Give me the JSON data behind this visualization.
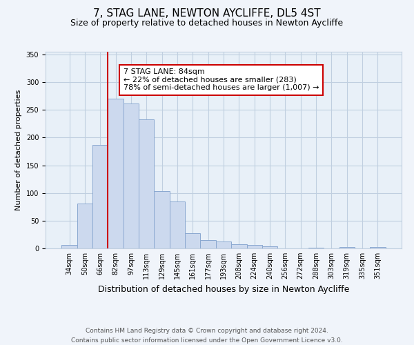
{
  "title": "7, STAG LANE, NEWTON AYCLIFFE, DL5 4ST",
  "subtitle": "Size of property relative to detached houses in Newton Aycliffe",
  "xlabel": "Distribution of detached houses by size in Newton Aycliffe",
  "ylabel": "Number of detached properties",
  "footer_line1": "Contains HM Land Registry data © Crown copyright and database right 2024.",
  "footer_line2": "Contains public sector information licensed under the Open Government Licence v3.0.",
  "bar_labels": [
    "34sqm",
    "50sqm",
    "66sqm",
    "82sqm",
    "97sqm",
    "113sqm",
    "129sqm",
    "145sqm",
    "161sqm",
    "177sqm",
    "193sqm",
    "208sqm",
    "224sqm",
    "240sqm",
    "256sqm",
    "272sqm",
    "288sqm",
    "303sqm",
    "319sqm",
    "335sqm",
    "351sqm"
  ],
  "bar_values": [
    6,
    81,
    187,
    270,
    261,
    233,
    103,
    85,
    27,
    15,
    12,
    8,
    6,
    4,
    0,
    0,
    1,
    0,
    2,
    0,
    2
  ],
  "bar_color": "#ccd9ee",
  "bar_edge_color": "#8aa8d0",
  "vline_x": 3,
  "vline_color": "#cc0000",
  "annotation_text": "7 STAG LANE: 84sqm\n← 22% of detached houses are smaller (283)\n78% of semi-detached houses are larger (1,007) →",
  "annotation_box_color": "#ffffff",
  "annotation_box_edge": "#cc0000",
  "ylim": [
    0,
    355
  ],
  "yticks": [
    0,
    50,
    100,
    150,
    200,
    250,
    300,
    350
  ],
  "bg_color": "#f0f4fa",
  "plot_bg_color": "#e8f0f8",
  "grid_color": "#c0cfe0",
  "title_fontsize": 11,
  "subtitle_fontsize": 9,
  "xlabel_fontsize": 9,
  "ylabel_fontsize": 8,
  "tick_fontsize": 7,
  "annotation_fontsize": 8,
  "footer_fontsize": 6.5
}
